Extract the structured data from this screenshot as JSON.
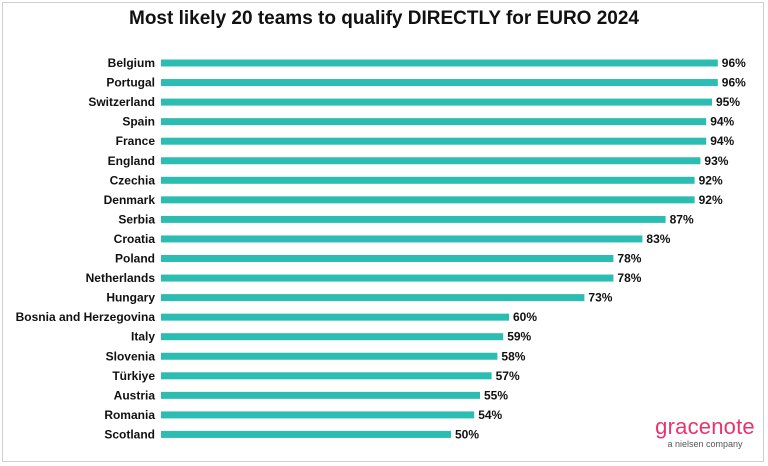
{
  "chart_data": {
    "type": "bar",
    "orientation": "horizontal",
    "title": "Most likely 20 teams to qualify DIRECTLY for EURO 2024",
    "categories": [
      "Belgium",
      "Portugal",
      "Switzerland",
      "Spain",
      "France",
      "England",
      "Czechia",
      "Denmark",
      "Serbia",
      "Croatia",
      "Poland",
      "Netherlands",
      "Hungary",
      "Bosnia and Herzegovina",
      "Italy",
      "Slovenia",
      "Türkiye",
      "Austria",
      "Romania",
      "Scotland"
    ],
    "values": [
      96,
      96,
      95,
      94,
      94,
      93,
      92,
      92,
      87,
      83,
      78,
      78,
      73,
      60,
      59,
      58,
      57,
      55,
      54,
      50
    ],
    "value_suffix": "%",
    "xlim": [
      0,
      100
    ],
    "bar_color": "#2bbdb1",
    "grid": false,
    "legend": "none"
  },
  "brand": {
    "name": "gracenote",
    "tagline": "a nielsen company",
    "color": "#e8336d"
  }
}
